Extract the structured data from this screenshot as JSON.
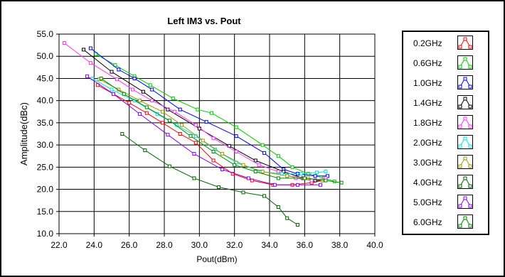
{
  "chart_data": {
    "type": "line",
    "title": "Left IM3 vs. Pout",
    "xlabel": "Pout(dBm)",
    "ylabel": "Amplitude(dBc)",
    "xlim": [
      22.0,
      40.0
    ],
    "ylim": [
      10.0,
      55.0
    ],
    "x_ticks": [
      "22.0",
      "24.0",
      "26.0",
      "28.0",
      "30.0",
      "32.0",
      "34.0",
      "36.0",
      "38.0",
      "40.0"
    ],
    "y_ticks": [
      "10.0",
      "15.0",
      "20.0",
      "25.0",
      "30.0",
      "35.0",
      "40.0",
      "45.0",
      "50.0",
      "55.0"
    ],
    "grid": true,
    "legend_position": "right",
    "series": [
      {
        "name": "0.2GHz",
        "color": "#ff0000",
        "points": [
          [
            24.2,
            43.5
          ],
          [
            25.1,
            41.5
          ],
          [
            26.0,
            39.5
          ],
          [
            27.0,
            37.2
          ],
          [
            27.9,
            35.0
          ],
          [
            28.9,
            32.5
          ],
          [
            29.8,
            30.5
          ],
          [
            30.8,
            26.5
          ],
          [
            31.9,
            23.5
          ],
          [
            33.0,
            22.0
          ],
          [
            34.2,
            21.0
          ],
          [
            35.3,
            21.0
          ],
          [
            36.4,
            21.5
          ],
          [
            37.0,
            22.0
          ]
        ]
      },
      {
        "name": "0.6GHz",
        "color": "#00cc00",
        "points": [
          [
            24.1,
            50.5
          ],
          [
            25.2,
            48.0
          ],
          [
            26.3,
            45.5
          ],
          [
            27.2,
            43.5
          ],
          [
            28.5,
            40.5
          ],
          [
            29.9,
            38.0
          ],
          [
            30.7,
            37.2
          ],
          [
            32.1,
            34.0
          ],
          [
            33.6,
            30.0
          ],
          [
            34.5,
            27.5
          ],
          [
            35.3,
            25.0
          ],
          [
            36.2,
            23.5
          ],
          [
            37.1,
            22.5
          ],
          [
            37.7,
            21.8
          ]
        ]
      },
      {
        "name": "1.0GHz",
        "color": "#0000ff",
        "points": [
          [
            23.8,
            51.8
          ],
          [
            25.4,
            47.0
          ],
          [
            26.3,
            45.0
          ],
          [
            27.3,
            42.5
          ],
          [
            28.9,
            38.0
          ],
          [
            30.4,
            35.2
          ],
          [
            32.1,
            32.0
          ],
          [
            33.7,
            28.2
          ],
          [
            34.8,
            24.5
          ],
          [
            35.6,
            23.5
          ],
          [
            36.6,
            23.0
          ],
          [
            37.3,
            23.0
          ]
        ]
      },
      {
        "name": "1.4GHz",
        "color": "#000000",
        "points": [
          [
            23.4,
            51.5
          ],
          [
            25.0,
            46.5
          ],
          [
            26.8,
            42.0
          ],
          [
            28.2,
            38.0
          ],
          [
            30.0,
            33.7
          ],
          [
            31.7,
            29.8
          ],
          [
            33.2,
            26.5
          ],
          [
            34.8,
            24.0
          ],
          [
            35.9,
            22.5
          ],
          [
            36.6,
            22.0
          ],
          [
            37.0,
            22.0
          ]
        ]
      },
      {
        "name": "1.8GHz",
        "color": "#ff33ff",
        "points": [
          [
            22.3,
            53.0
          ],
          [
            23.8,
            48.5
          ],
          [
            25.3,
            44.8
          ],
          [
            26.2,
            42.5
          ],
          [
            27.3,
            40.0
          ],
          [
            28.6,
            37.5
          ],
          [
            29.8,
            34.5
          ],
          [
            30.8,
            31.5
          ],
          [
            32.1,
            28.5
          ],
          [
            33.4,
            25.5
          ],
          [
            34.5,
            24.0
          ],
          [
            35.5,
            22.5
          ],
          [
            36.4,
            22.0
          ],
          [
            37.2,
            22.5
          ]
        ]
      },
      {
        "name": "2.0GHz",
        "color": "#00e0e0",
        "points": [
          [
            23.9,
            45.0
          ],
          [
            25.0,
            42.5
          ],
          [
            26.3,
            40.0
          ],
          [
            27.6,
            37.0
          ],
          [
            28.7,
            34.5
          ],
          [
            29.8,
            32.0
          ],
          [
            30.9,
            29.0
          ],
          [
            32.1,
            26.0
          ],
          [
            33.5,
            24.0
          ],
          [
            34.7,
            23.5
          ],
          [
            35.8,
            23.5
          ],
          [
            36.7,
            23.8
          ],
          [
            37.2,
            24.0
          ]
        ]
      },
      {
        "name": "3.0GHz",
        "color": "#999900",
        "points": [
          [
            24.3,
            44.8
          ],
          [
            25.4,
            42.5
          ],
          [
            26.6,
            40.0
          ],
          [
            27.9,
            37.5
          ],
          [
            29.0,
            34.5
          ],
          [
            30.2,
            31.0
          ],
          [
            31.3,
            28.0
          ],
          [
            32.5,
            25.5
          ],
          [
            33.6,
            24.0
          ],
          [
            35.0,
            23.0
          ],
          [
            36.2,
            22.5
          ],
          [
            37.0,
            22.0
          ]
        ]
      },
      {
        "name": "4.0GHz",
        "color": "#006600",
        "points": [
          [
            25.6,
            32.5
          ],
          [
            26.9,
            28.8
          ],
          [
            28.3,
            25.2
          ],
          [
            29.7,
            22.5
          ],
          [
            31.1,
            20.5
          ],
          [
            32.5,
            19.3
          ],
          [
            33.7,
            18.5
          ],
          [
            34.5,
            16.0
          ],
          [
            35.0,
            13.5
          ],
          [
            35.6,
            12.0
          ]
        ]
      },
      {
        "name": "5.0GHz",
        "color": "#8800ff",
        "points": [
          [
            23.6,
            45.5
          ],
          [
            25.1,
            41.5
          ],
          [
            26.6,
            37.0
          ],
          [
            28.2,
            32.3
          ],
          [
            29.7,
            28.0
          ],
          [
            31.3,
            24.5
          ],
          [
            32.8,
            22.5
          ],
          [
            34.3,
            21.0
          ],
          [
            35.6,
            21.0
          ],
          [
            36.9,
            21.0
          ]
        ]
      },
      {
        "name": "6.0GHz",
        "color": "#008800",
        "points": [
          [
            24.4,
            45.0
          ],
          [
            25.7,
            41.5
          ],
          [
            27.0,
            38.5
          ],
          [
            28.3,
            35.5
          ],
          [
            29.5,
            32.0
          ],
          [
            30.8,
            28.5
          ],
          [
            32.0,
            25.5
          ],
          [
            33.2,
            24.0
          ],
          [
            34.5,
            22.5
          ],
          [
            36.0,
            22.5
          ],
          [
            37.2,
            22.0
          ],
          [
            38.1,
            21.5
          ]
        ]
      }
    ]
  }
}
